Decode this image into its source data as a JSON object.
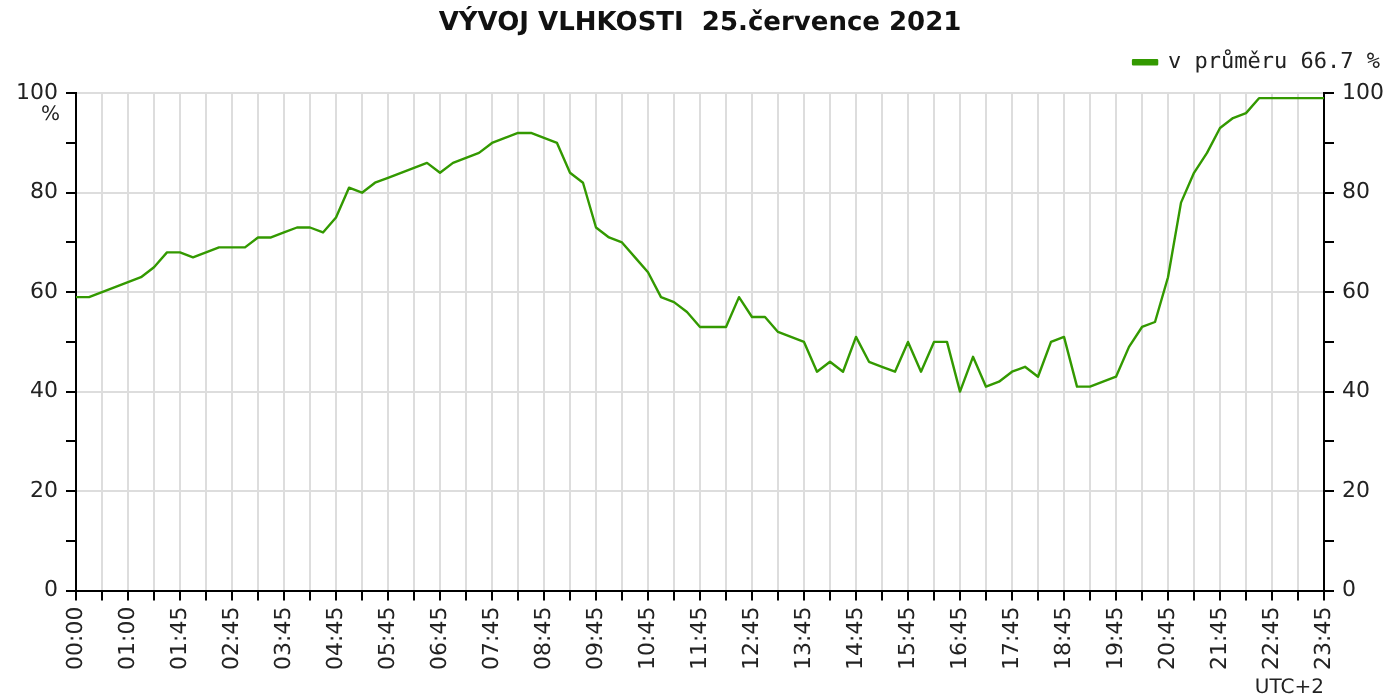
{
  "chart_data": {
    "type": "line",
    "title": "VÝVOJ VLHKOSTI  25.července 2021",
    "ylabel": "%",
    "xlabel": "UTC+2",
    "categories": [
      "00:00",
      null,
      null,
      null,
      "01:00",
      null,
      null,
      null,
      "01:45",
      null,
      null,
      null,
      "02:45",
      null,
      null,
      null,
      "03:45",
      null,
      null,
      null,
      "04:45",
      null,
      null,
      null,
      "05:45",
      null,
      null,
      null,
      "06:45",
      null,
      null,
      null,
      "07:45",
      null,
      null,
      null,
      "08:45",
      null,
      null,
      null,
      "09:45",
      null,
      null,
      null,
      "10:45",
      null,
      null,
      null,
      "11:45",
      null,
      null,
      null,
      "12:45",
      null,
      null,
      null,
      "13:45",
      null,
      null,
      null,
      "14:45",
      null,
      null,
      null,
      "15:45",
      null,
      null,
      null,
      "16:45",
      null,
      null,
      null,
      "17:45",
      null,
      null,
      null,
      "18:45",
      null,
      null,
      null,
      "19:45",
      null,
      null,
      null,
      "20:45",
      null,
      null,
      null,
      "21:45",
      null,
      null,
      null,
      "22:45",
      null,
      null,
      null,
      "23:45"
    ],
    "series": [
      {
        "name": "v průměru 66.7 %",
        "color": "#339900",
        "values": [
          59,
          59,
          60,
          61,
          62,
          63,
          65,
          68,
          68,
          67,
          68,
          69,
          69,
          69,
          71,
          71,
          72,
          73,
          73,
          72,
          75,
          81,
          80,
          82,
          83,
          84,
          85,
          86,
          84,
          86,
          87,
          88,
          90,
          91,
          92,
          92,
          91,
          90,
          84,
          82,
          73,
          71,
          70,
          67,
          64,
          59,
          58,
          56,
          53,
          53,
          53,
          59,
          55,
          55,
          52,
          51,
          50,
          44,
          46,
          44,
          51,
          46,
          45,
          44,
          50,
          44,
          50,
          50,
          40,
          47,
          41,
          42,
          44,
          45,
          43,
          50,
          51,
          41,
          41,
          42,
          43,
          49,
          53,
          54,
          63,
          78,
          84,
          88,
          93,
          95,
          96,
          99,
          99,
          99,
          99,
          99,
          99
        ]
      }
    ],
    "ylim": [
      0,
      100
    ],
    "yticks": [
      0,
      {
        "value": 10,
        "label": null
      },
      20,
      {
        "value": 30,
        "label": null
      },
      40,
      {
        "value": 50,
        "label": null
      },
      60,
      {
        "value": 70,
        "label": null
      },
      80,
      {
        "value": 90,
        "label": null
      },
      100
    ],
    "y2lim": [
      0,
      100
    ],
    "y2ticks": [
      0,
      {
        "value": 10,
        "label": null
      },
      20,
      {
        "value": 30,
        "label": null
      },
      40,
      {
        "value": 50,
        "label": null
      },
      60,
      {
        "value": 70,
        "label": null
      },
      80,
      {
        "value": 90,
        "label": null
      },
      100
    ],
    "grid": true,
    "legend": "top right",
    "marker": "none",
    "line_style": "solid"
  }
}
